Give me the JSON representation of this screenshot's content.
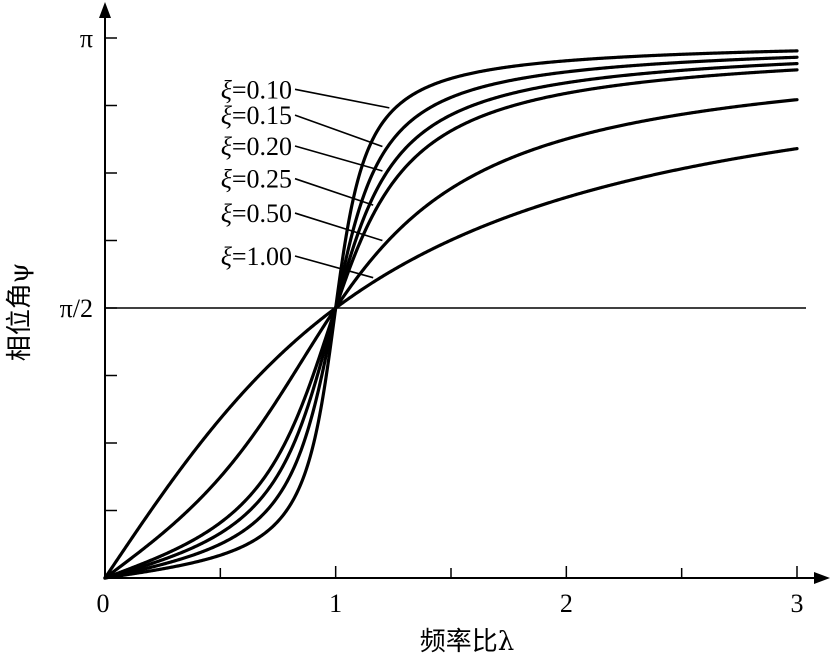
{
  "chart_data": {
    "type": "line",
    "title": "",
    "xlabel": "频率比λ",
    "ylabel": "相位角ψ",
    "xlim": [
      0,
      3
    ],
    "ylim": [
      0,
      3.14159
    ],
    "x_ticks": [
      {
        "value": 0,
        "label": "0"
      },
      {
        "value": 1,
        "label": "1"
      },
      {
        "value": 2,
        "label": "2"
      },
      {
        "value": 3,
        "label": "3"
      }
    ],
    "x_minor_ticks": [
      0.5,
      1.5,
      2.5
    ],
    "y_ticks": [
      {
        "value": 1.5708,
        "label": "π/2"
      },
      {
        "value": 3.14159,
        "label": "π"
      }
    ],
    "y_minor_ticks": [
      0.3927,
      0.7854,
      1.1781,
      1.9635,
      2.3562,
      2.7489
    ],
    "reference_line": {
      "y": 1.5708
    },
    "grid": false,
    "legend_placement": "inline labels with leader lines, upper-left",
    "series": [
      {
        "name": "ξ=0.10",
        "damping": 0.1,
        "symbol": "ξ",
        "value_text": "=0.10",
        "label_anchor": {
          "x": 1.25,
          "y": 2.75
        }
      },
      {
        "name": "ξ=0.15",
        "damping": 0.15,
        "symbol": "ξ",
        "value_text": "=0.15",
        "label_anchor": {
          "x": 1.22,
          "y": 2.6
        }
      },
      {
        "name": "ξ=0.20",
        "damping": 0.2,
        "symbol": "ξ",
        "value_text": "=0.20",
        "label_anchor": {
          "x": 1.22,
          "y": 2.42
        }
      },
      {
        "name": "ξ=0.25",
        "damping": 0.25,
        "symbol": "ξ",
        "value_text": "=0.25",
        "label_anchor": {
          "x": 1.18,
          "y": 2.23
        }
      },
      {
        "name": "ξ=0.50",
        "damping": 0.5,
        "symbol": "ξ",
        "value_text": "=0.50",
        "label_anchor": {
          "x": 1.22,
          "y": 2.03
        }
      },
      {
        "name": "ξ=1.00",
        "damping": 1.0,
        "symbol": "ξ",
        "value_text": "=1.00",
        "label_anchor": {
          "x": 1.18,
          "y": 1.78
        }
      }
    ]
  }
}
